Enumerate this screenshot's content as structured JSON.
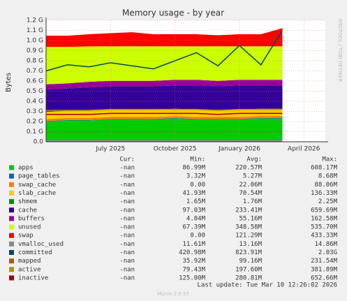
{
  "chart_data": {
    "type": "area",
    "title": "Memory usage - by year",
    "ylabel": "Bytes",
    "watermark": "RRDTOOL / TOBI OETIKER",
    "footer": "Last update: Tue Mar 10 12:26:02 2026",
    "version": "Munin 2.0.57",
    "columns": [
      "Cur:",
      "Min:",
      "Avg:",
      "Max:"
    ],
    "x": [
      "2025-04",
      "2025-05",
      "2025-06",
      "2025-07",
      "2025-08",
      "2025-09",
      "2025-10",
      "2025-11",
      "2025-12",
      "2026-01",
      "2026-02",
      "2026-03"
    ],
    "xlim": [
      "2025-04",
      "2026-05"
    ],
    "xticks": [
      {
        "value": "2025-07",
        "label": "July 2025"
      },
      {
        "value": "2025-10",
        "label": "October 2025"
      },
      {
        "value": "2026-01",
        "label": "January 2026"
      },
      {
        "value": "2026-04",
        "label": "April 2026"
      }
    ],
    "ylim": [
      0,
      1.2
    ],
    "yticks": [
      {
        "value": 0,
        "label": "0.0"
      },
      {
        "value": 0.1,
        "label": "0.1 G"
      },
      {
        "value": 0.2,
        "label": "0.2 G"
      },
      {
        "value": 0.3,
        "label": "0.3 G"
      },
      {
        "value": 0.4,
        "label": "0.4 G"
      },
      {
        "value": 0.5,
        "label": "0.5 G"
      },
      {
        "value": 0.6,
        "label": "0.6 G"
      },
      {
        "value": 0.7,
        "label": "0.7 G"
      },
      {
        "value": 0.8,
        "label": "0.8 G"
      },
      {
        "value": 0.9,
        "label": "0.9 G"
      },
      {
        "value": 1.0,
        "label": "1.0 G"
      },
      {
        "value": 1.1,
        "label": "1.1 G"
      },
      {
        "value": 1.2,
        "label": "1.2 G"
      }
    ],
    "grid": true,
    "series": [
      {
        "name": "apps",
        "color": "#00cc00",
        "style": "stack",
        "stats": [
          "-nan",
          "86.99M",
          "220.57M",
          "608.17M"
        ],
        "values": [
          0.2,
          0.21,
          0.21,
          0.22,
          0.22,
          0.22,
          0.23,
          0.22,
          0.22,
          0.22,
          0.23,
          0.23
        ]
      },
      {
        "name": "page_tables",
        "color": "#0066b3",
        "style": "stack",
        "stats": [
          "-nan",
          "3.32M",
          "5.27M",
          "8.68M"
        ],
        "values": [
          0.005,
          0.005,
          0.005,
          0.005,
          0.005,
          0.005,
          0.005,
          0.005,
          0.005,
          0.005,
          0.005,
          0.005
        ]
      },
      {
        "name": "swap_cache",
        "color": "#ff8000",
        "style": "stack",
        "stats": [
          "-nan",
          "0.00",
          "22.06M",
          "88.06M"
        ],
        "values": [
          0.02,
          0.02,
          0.02,
          0.02,
          0.02,
          0.02,
          0.02,
          0.02,
          0.02,
          0.02,
          0.02,
          0.02
        ]
      },
      {
        "name": "slab_cache",
        "color": "#ffcc00",
        "style": "stack",
        "stats": [
          "-nan",
          "41.93M",
          "70.54M",
          "136.33M"
        ],
        "values": [
          0.07,
          0.07,
          0.07,
          0.07,
          0.07,
          0.07,
          0.07,
          0.07,
          0.07,
          0.07,
          0.07,
          0.07
        ]
      },
      {
        "name": "shmem",
        "color": "#008f00",
        "style": "stack",
        "stats": [
          "-nan",
          "1.65M",
          "1.76M",
          "2.25M"
        ],
        "values": [
          0.002,
          0.002,
          0.002,
          0.002,
          0.002,
          0.002,
          0.002,
          0.002,
          0.002,
          0.002,
          0.002,
          0.002
        ]
      },
      {
        "name": "cache",
        "color": "#330099",
        "style": "stack",
        "stats": [
          "-nan",
          "97.03M",
          "233.41M",
          "659.69M"
        ],
        "values": [
          0.22,
          0.22,
          0.23,
          0.23,
          0.23,
          0.23,
          0.23,
          0.24,
          0.23,
          0.24,
          0.23,
          0.23
        ]
      },
      {
        "name": "buffers",
        "color": "#990099",
        "style": "stack",
        "stats": [
          "-nan",
          "4.84M",
          "55.16M",
          "162.58M"
        ],
        "values": [
          0.05,
          0.05,
          0.055,
          0.055,
          0.055,
          0.055,
          0.055,
          0.055,
          0.055,
          0.055,
          0.055,
          0.055
        ]
      },
      {
        "name": "unused",
        "color": "#ccff00",
        "style": "stack",
        "stats": [
          "-nan",
          "67.39M",
          "348.58M",
          "535.70M"
        ],
        "values": [
          0.37,
          0.36,
          0.35,
          0.34,
          0.34,
          0.34,
          0.33,
          0.33,
          0.34,
          0.33,
          0.33,
          0.33
        ]
      },
      {
        "name": "swap",
        "color": "#ff0000",
        "style": "stack",
        "stats": [
          "-nan",
          "0.00",
          "121.29M",
          "433.33M"
        ],
        "values": [
          0.11,
          0.11,
          0.12,
          0.13,
          0.14,
          0.12,
          0.12,
          0.12,
          0.11,
          0.12,
          0.12,
          0.18
        ]
      },
      {
        "name": "vmalloc_used",
        "color": "#888888",
        "style": "line",
        "stats": [
          "-nan",
          "11.61M",
          "13.16M",
          "14.86M"
        ],
        "values": [
          0.013,
          0.013,
          0.013,
          0.013,
          0.013,
          0.013,
          0.013,
          0.013,
          0.013,
          0.013,
          0.013,
          0.013
        ]
      },
      {
        "name": "committed",
        "color": "#00476a",
        "style": "line",
        "stats": [
          "-nan",
          "420.98M",
          "823.91M",
          "2.03G"
        ],
        "values": [
          0.7,
          0.76,
          0.74,
          0.78,
          0.75,
          0.72,
          0.8,
          0.88,
          0.75,
          0.95,
          0.76,
          1.1
        ]
      },
      {
        "name": "mapped",
        "color": "#b35a00",
        "style": "line",
        "stats": [
          "-nan",
          "35.92M",
          "99.16M",
          "231.54M"
        ],
        "values": [
          0.1,
          0.1,
          0.1,
          0.1,
          0.1,
          0.1,
          0.1,
          0.1,
          0.1,
          0.1,
          0.1,
          0.1
        ]
      },
      {
        "name": "active",
        "color": "#b38f00",
        "style": "line",
        "stats": [
          "-nan",
          "79.43M",
          "197.60M",
          "381.89M"
        ],
        "values": [
          0.31,
          0.31,
          0.31,
          0.32,
          0.32,
          0.32,
          0.32,
          0.32,
          0.31,
          0.32,
          0.32,
          0.32
        ]
      },
      {
        "name": "inactive",
        "color": "#a00000",
        "style": "line",
        "stats": [
          "-nan",
          "125.00M",
          "280.81M",
          "652.66M"
        ],
        "values": [
          0.27,
          0.27,
          0.27,
          0.28,
          0.28,
          0.28,
          0.28,
          0.28,
          0.27,
          0.28,
          0.28,
          0.28
        ]
      }
    ]
  }
}
